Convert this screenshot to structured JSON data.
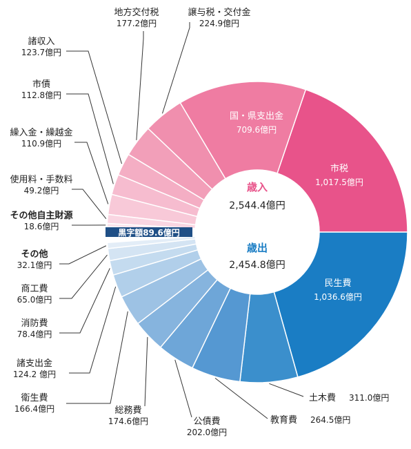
{
  "chart_data": {
    "type": "pie",
    "center": {
      "revenue_label": "歳入",
      "revenue_total": "2,544.4億円",
      "expenditure_label": "歳出",
      "expenditure_total": "2,454.8億円"
    },
    "surplus": {
      "label": "黒字額89.6億円",
      "value": 89.6
    },
    "revenue": [
      {
        "name": "市税",
        "value": 1017.5,
        "value_label": "1,017.5億円",
        "color": "#e8538a"
      },
      {
        "name": "国・県支出金",
        "value": 709.6,
        "value_label": "709.6億円",
        "color": "#ef7ca2"
      },
      {
        "name": "譲与税・交付金",
        "value": 224.9,
        "value_label": "224.9億円",
        "color": "#f08fae"
      },
      {
        "name": "地方交付税",
        "value": 177.2,
        "value_label": "177.2億円",
        "color": "#f29fb9"
      },
      {
        "name": "諸収入",
        "value": 123.7,
        "value_label": "123.7億円",
        "color": "#f4aec4"
      },
      {
        "name": "市債",
        "value": 112.8,
        "value_label": "112.8億円",
        "color": "#f6bccf"
      },
      {
        "name": "繰入金・繰越金",
        "value": 110.9,
        "value_label": "110.9億円",
        "color": "#f8c9d8"
      },
      {
        "name": "使用料・手数料",
        "value": 49.2,
        "value_label": "49.2億円",
        "color": "#fad6e2"
      },
      {
        "name": "その他自主財源",
        "value": 18.6,
        "value_label": "18.6億円",
        "color": "#fce3eb"
      }
    ],
    "expenditure": [
      {
        "name": "民生費",
        "value": 1036.6,
        "value_label": "1,036.6億円",
        "color": "#1a7dc4"
      },
      {
        "name": "土木費",
        "value": 311.0,
        "value_label": "311.0億円",
        "color": "#3b8fcc"
      },
      {
        "name": "教育費",
        "value": 264.5,
        "value_label": "264.5億円",
        "color": "#5598d2"
      },
      {
        "name": "公債費",
        "value": 202.0,
        "value_label": "202.0億円",
        "color": "#6ea6d8"
      },
      {
        "name": "総務費",
        "value": 174.6,
        "value_label": "174.6億円",
        "color": "#86b4de"
      },
      {
        "name": "衛生費",
        "value": 166.4,
        "value_label": "166.4億円",
        "color": "#9dc2e4"
      },
      {
        "name": "諸支出金",
        "value": 124.2,
        "value_label": "124.2 億円",
        "color": "#b1cfea"
      },
      {
        "name": "消防費",
        "value": 78.4,
        "value_label": "78.4億円",
        "color": "#c4dbef"
      },
      {
        "name": "商工費",
        "value": 65.0,
        "value_label": "65.0億円",
        "color": "#d4e4f3"
      },
      {
        "name": "その他",
        "value": 32.1,
        "value_label": "32.1億円",
        "color": "#e3edf7"
      }
    ],
    "colors": {
      "surplus": "#1f4f86",
      "revenue_heading": "#e8538a",
      "expenditure_heading": "#1a7dc4"
    }
  }
}
